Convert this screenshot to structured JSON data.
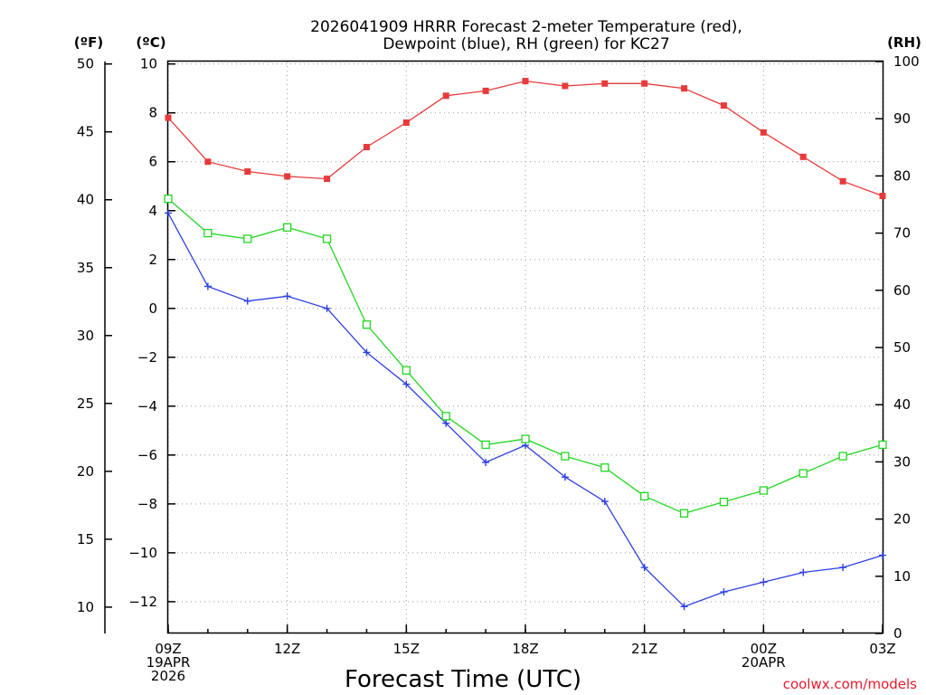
{
  "chart_data": {
    "type": "line",
    "title_lines": [
      "2026041909 HRRR Forecast 2-meter Temperature (red),",
      "Dewpoint (blue), RH (green) for KC27"
    ],
    "xlabel": "Forecast Time (UTC)",
    "credit": "coolwx.com/models",
    "unit_labels": {
      "fahrenheit": "(ºF)",
      "celsius": "(ºC)",
      "rh": "(RH)"
    },
    "x_hours": [
      0,
      1,
      2,
      3,
      4,
      5,
      6,
      7,
      8,
      9,
      10,
      11,
      12,
      13,
      14,
      15,
      16,
      17,
      18
    ],
    "x_tick_labels": [
      {
        "hour": 0,
        "lines": [
          "09Z",
          "19APR",
          "2026"
        ]
      },
      {
        "hour": 3,
        "lines": [
          "12Z"
        ]
      },
      {
        "hour": 6,
        "lines": [
          "15Z"
        ]
      },
      {
        "hour": 9,
        "lines": [
          "18Z"
        ]
      },
      {
        "hour": 12,
        "lines": [
          "21Z"
        ]
      },
      {
        "hour": 15,
        "lines": [
          "00Z",
          "20APR"
        ]
      },
      {
        "hour": 18,
        "lines": [
          "03Z"
        ]
      }
    ],
    "celsius_axis": {
      "min": -13.3,
      "max": 10.1,
      "ticks": [
        10,
        8,
        6,
        4,
        2,
        0,
        -2,
        -4,
        -6,
        -8,
        -10,
        -12
      ]
    },
    "fahrenheit_axis": {
      "min": 8.06,
      "max": 50.18,
      "ticks": [
        50,
        45,
        40,
        35,
        30,
        25,
        20,
        15,
        10
      ]
    },
    "rh_axis": {
      "min": 0,
      "max": 100,
      "ticks": [
        100,
        90,
        80,
        70,
        60,
        50,
        40,
        30,
        20,
        10,
        0
      ]
    },
    "series": [
      {
        "name": "Temperature",
        "units": "C",
        "color": "#e83a3a",
        "marker": "filled-square",
        "values": [
          7.8,
          6.0,
          5.6,
          5.4,
          5.3,
          6.6,
          7.6,
          8.7,
          8.9,
          9.3,
          9.1,
          9.2,
          9.2,
          9.0,
          8.3,
          7.2,
          6.2,
          5.2,
          4.6
        ]
      },
      {
        "name": "Dewpoint",
        "units": "C",
        "color": "#2c3fe0",
        "marker": "plus",
        "values": [
          3.9,
          0.9,
          0.3,
          0.5,
          0.0,
          -1.8,
          -3.1,
          -4.7,
          -6.3,
          -5.6,
          -6.9,
          -7.9,
          -10.6,
          -12.2,
          -11.6,
          -11.2,
          -10.8,
          -10.6,
          -10.1
        ]
      },
      {
        "name": "Relative Humidity",
        "units": "%",
        "color": "#22d622",
        "marker": "open-square",
        "values": [
          76,
          70,
          69,
          71,
          69,
          54,
          46,
          38,
          33,
          34,
          31,
          29,
          24,
          21,
          23,
          25,
          28,
          31,
          33
        ]
      }
    ],
    "grid": "dotted"
  }
}
